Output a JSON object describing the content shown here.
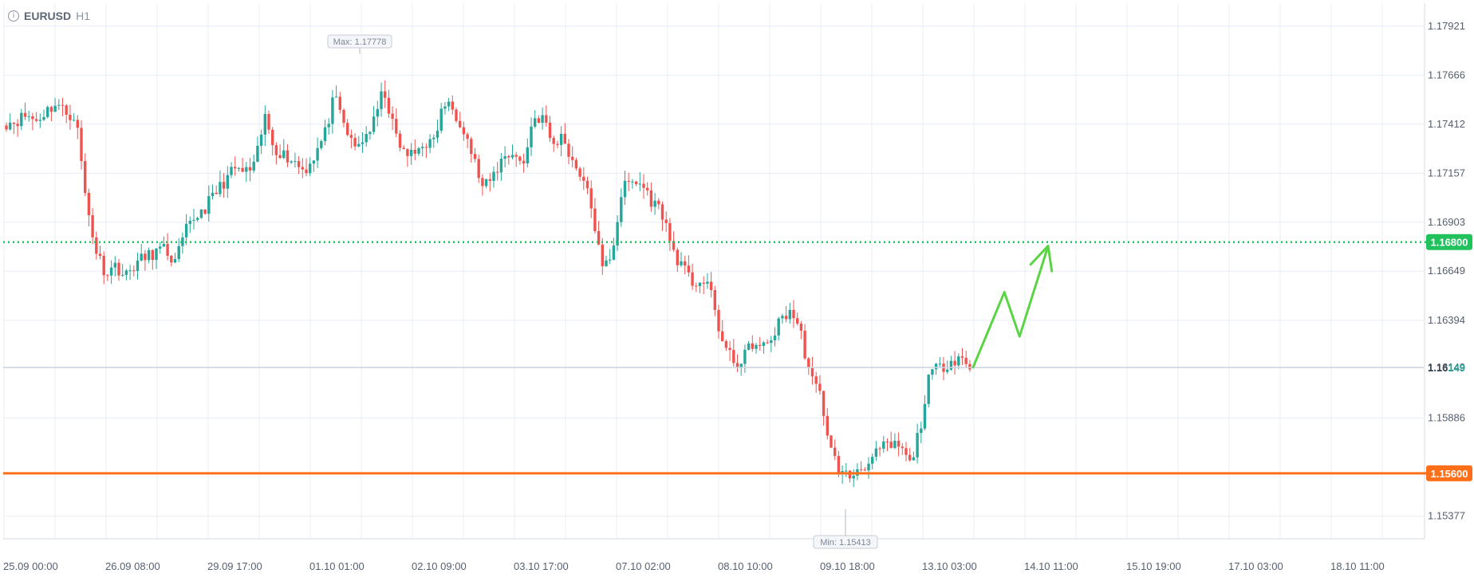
{
  "header": {
    "symbol": "EURUSD",
    "timeframe": "H1",
    "info_icon": "info-circle-icon"
  },
  "colors": {
    "bull": "#26a69a",
    "bear": "#ef5350",
    "resistance": "#21c25e",
    "support": "#ff6f1a",
    "arrow": "#5ad444",
    "grid": "#e8edf5",
    "axis_text": "#555f6e"
  },
  "chart_data": {
    "type": "candlestick",
    "symbol": "EURUSD",
    "timeframe": "H1",
    "ylim": [
      1.1526,
      1.1804
    ],
    "y_ticks": [
      "1.17921",
      "1.17666",
      "1.17412",
      "1.17157",
      "1.16903",
      "1.16649",
      "1.16394",
      "1.16149",
      "1.15886",
      "1.15600",
      "1.15377"
    ],
    "x_ticks": [
      "25.09 00:00",
      "26.09 08:00",
      "29.09 17:00",
      "01.10 01:00",
      "02.10 09:00",
      "03.10 17:00",
      "07.10 02:00",
      "08.10 10:00",
      "09.10 18:00",
      "13.10 03:00",
      "14.10 11:00",
      "15.10 19:00",
      "17.10 03:00",
      "18.10 11:00"
    ],
    "max_label": "Max: 1.17778",
    "min_label": "Min: 1.15413",
    "max_value": 1.17778,
    "min_value": 1.15413,
    "current_price": "1.16149",
    "current_price_parts": [
      "1.16",
      "149"
    ],
    "resistance": {
      "value": 1.168,
      "label": "1.16800",
      "style": "dotted"
    },
    "support": {
      "value": 1.156,
      "label": "1.15600",
      "style": "solid"
    },
    "arrow_path": [
      [
        1.1615,
        0
      ],
      [
        1.1654,
        3.5
      ],
      [
        1.1631,
        5.2
      ],
      [
        1.1678,
        8.4
      ]
    ],
    "price_path": [
      1.1742,
      1.1743,
      1.1746,
      1.1743,
      1.1748,
      1.1752,
      1.1747,
      1.1745,
      1.1702,
      1.1676,
      1.1664,
      1.1668,
      1.1662,
      1.1669,
      1.1672,
      1.1675,
      1.1676,
      1.1669,
      1.1685,
      1.1693,
      1.1698,
      1.1705,
      1.1712,
      1.1718,
      1.1716,
      1.1719,
      1.1745,
      1.1729,
      1.1725,
      1.1722,
      1.1717,
      1.1725,
      1.1735,
      1.1755,
      1.1741,
      1.1728,
      1.1734,
      1.1742,
      1.176,
      1.1738,
      1.1726,
      1.1725,
      1.1732,
      1.1731,
      1.1752,
      1.1749,
      1.174,
      1.1724,
      1.1707,
      1.1714,
      1.1724,
      1.1727,
      1.1719,
      1.1744,
      1.1745,
      1.173,
      1.1735,
      1.1722,
      1.1714,
      1.1696,
      1.1665,
      1.1675,
      1.1708,
      1.1711,
      1.171,
      1.1701,
      1.1696,
      1.1677,
      1.1667,
      1.1659,
      1.166,
      1.1653,
      1.1629,
      1.1619,
      1.1617,
      1.1628,
      1.1624,
      1.163,
      1.164,
      1.1645,
      1.1632,
      1.1609,
      1.16,
      1.1572,
      1.156,
      1.1558,
      1.1564,
      1.1565,
      1.1573,
      1.1574,
      1.1574,
      1.1564,
      1.1584,
      1.1612,
      1.1615,
      1.1618,
      1.1621,
      1.1614
    ]
  }
}
